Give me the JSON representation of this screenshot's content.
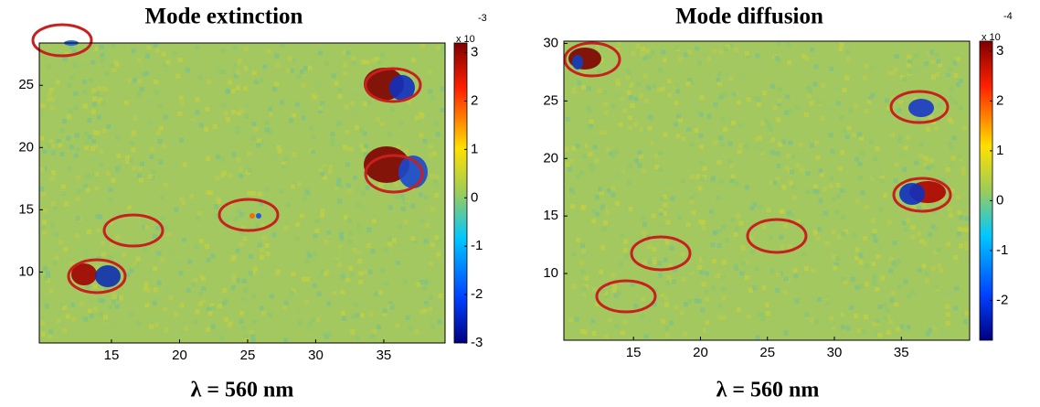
{
  "chart_data": [
    {
      "type": "heatmap",
      "title": "Mode extinction",
      "xlabel": "λ = 560 nm",
      "xlim": [
        9.7,
        39.5
      ],
      "ylim": [
        4.3,
        28.4
      ],
      "xticks": [
        15,
        20,
        25,
        30,
        35
      ],
      "yticks": [
        10,
        15,
        20,
        25
      ],
      "clim": [
        -3,
        3.2
      ],
      "cticks": [
        3,
        2,
        1,
        0,
        -1,
        -2,
        -3
      ],
      "colorbar_label": "x 10",
      "colorbar_exponent": "-3"
    },
    {
      "type": "heatmap",
      "title": "Mode diffusion",
      "xlabel": "λ = 560 nm",
      "xlim": [
        9.8,
        40.1
      ],
      "ylim": [
        4.2,
        30.2
      ],
      "xticks": [
        15,
        20,
        25,
        30,
        35
      ],
      "yticks": [
        10,
        15,
        20,
        25,
        30
      ],
      "clim": [
        -2.8,
        3.2
      ],
      "cticks": [
        3,
        2,
        1,
        0,
        -1,
        -2
      ],
      "colorbar_label": "x 10",
      "colorbar_exponent": "-4"
    }
  ]
}
